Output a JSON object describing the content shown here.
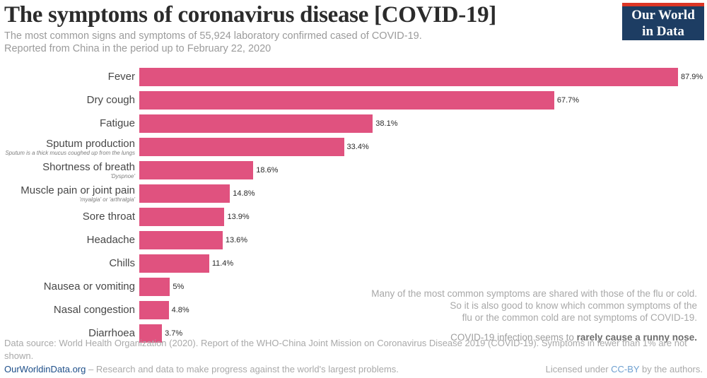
{
  "header": {
    "title": "The symptoms of coronavirus disease [COVID-19]",
    "subtitle_line1": "The most common signs and symptoms of 55,924 laboratory confirmed cased of COVID-19.",
    "subtitle_line2": "Reported from China in the period up to February 22, 2020",
    "logo_line1": "Our World",
    "logo_line2": "in Data"
  },
  "chart_data": {
    "type": "bar",
    "orientation": "horizontal",
    "title": "The symptoms of coronavirus disease [COVID-19]",
    "categories": [
      "Fever",
      "Dry cough",
      "Fatigue",
      "Sputum production",
      "Shortness of breath",
      "Muscle pain or joint pain",
      "Sore throat",
      "Headache",
      "Chills",
      "Nausea or vomiting",
      "Nasal congestion",
      "Diarrhoea"
    ],
    "values": [
      87.9,
      67.7,
      38.1,
      33.4,
      18.6,
      14.8,
      13.9,
      13.6,
      11.4,
      5,
      4.8,
      3.7
    ],
    "value_labels": [
      "87.9%",
      "67.7%",
      "38.1%",
      "33.4%",
      "18.6%",
      "14.8%",
      "13.9%",
      "13.6%",
      "11.4%",
      "5%",
      "4.8%",
      "3.7%"
    ],
    "sublabels": [
      "",
      "",
      "",
      "Sputum is a thick mucus coughed up from the lungs",
      "'Dyspnoe'",
      "'myalgia' or 'arthralgia'",
      "",
      "",
      "",
      "",
      "",
      ""
    ],
    "xlim": [
      0,
      87.9
    ],
    "grid": false,
    "legend": "none",
    "value_label_position": "end",
    "bar_color": "#e0527f"
  },
  "annotation": {
    "line1": "Many of the most common symptoms are shared with those of the flu or cold.",
    "line2": "So it is also good to know which common symptoms of the",
    "line3": "flu or the common cold are not symptoms of COVID-19.",
    "closing_normal": "COVID-19 infection seems to ",
    "closing_bold": "rarely cause a runny nose."
  },
  "footer": {
    "source_line": "Data source: World Health Organization (2020). Report of the WHO-China Joint Mission on Coronavirus Disease 2019 (COVID-19). Symptoms in fewer than 1% are not shown.",
    "site_link": "OurWorldinData.org",
    "site_tagline": " – Research and data to make progress against the world's largest problems.",
    "license_prefix": "Licensed under ",
    "license_link": "CC-BY",
    "license_suffix": " by the authors."
  },
  "colors": {
    "bar": "#e0527f",
    "logo_background": "#1d3d63",
    "logo_accent_red": "#dc3626",
    "site_link_blue": "#1d4e89",
    "license_link_blue": "#6d9fd0"
  }
}
